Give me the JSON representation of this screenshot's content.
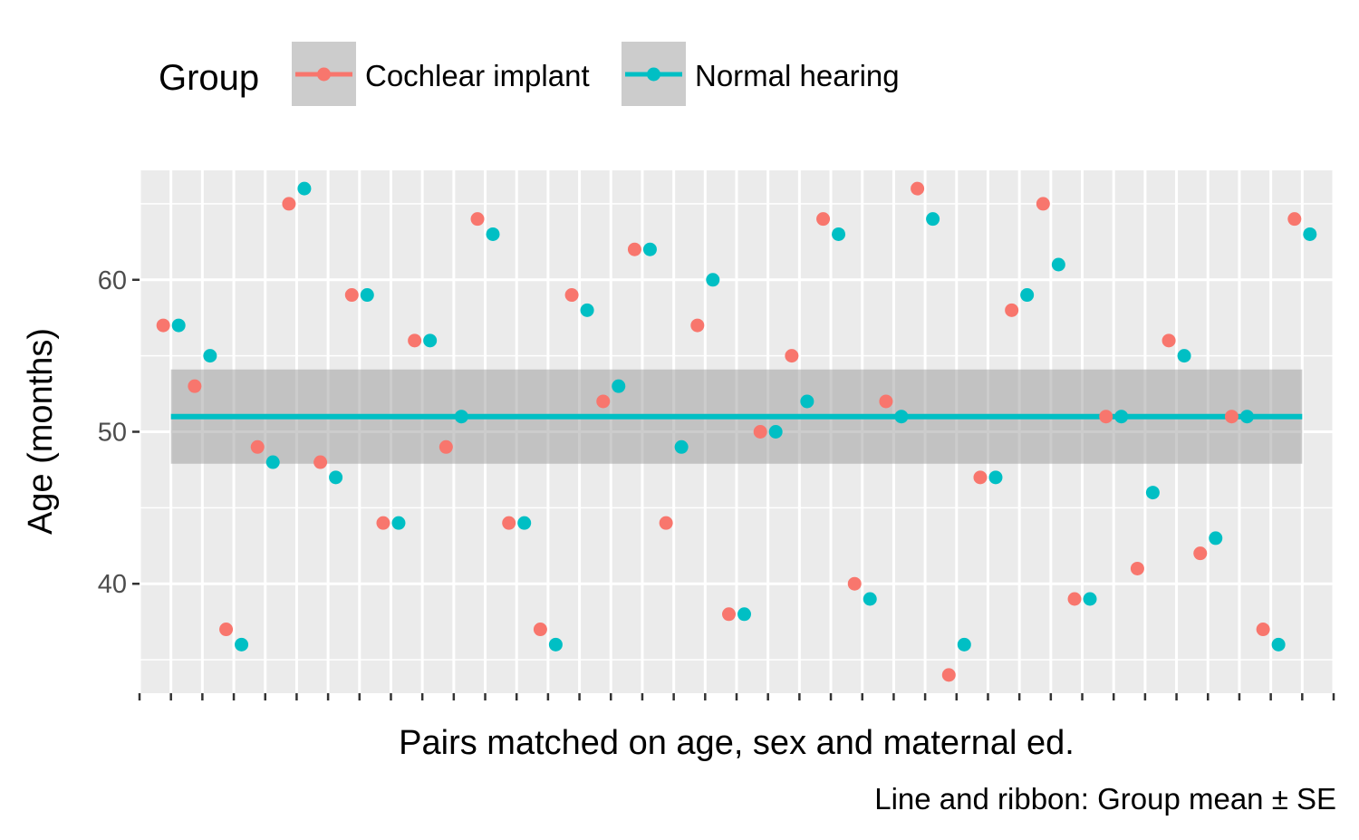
{
  "chart_data": {
    "type": "scatter",
    "xlabel": "Pairs matched on age, sex and maternal ed.",
    "ylabel": "Age (months)",
    "caption": "Line and ribbon: Group mean ± SE",
    "ylim": [
      32.8,
      67.2
    ],
    "yticks": [
      40,
      50,
      60
    ],
    "grid": true,
    "legend": {
      "title": "Group",
      "position": "top",
      "entries": [
        "Cochlear implant",
        "Normal hearing"
      ]
    },
    "pair_count": 37,
    "summary": {
      "mean": 51,
      "se_low": 47.9,
      "se_high": 54.1,
      "line_color": "#00BFC4",
      "ribbon_color": "#999999"
    },
    "series": [
      {
        "name": "Cochlear implant",
        "color": "#F8766D",
        "values": [
          57,
          53,
          37,
          49,
          65,
          48,
          59,
          44,
          56,
          49,
          64,
          44,
          37,
          59,
          52,
          62,
          44,
          57,
          38,
          50,
          55,
          64,
          40,
          52,
          66,
          34,
          47,
          58,
          65,
          39,
          51,
          41,
          56,
          42,
          51,
          37,
          64
        ]
      },
      {
        "name": "Normal hearing",
        "color": "#00BFC4",
        "values": [
          57,
          55,
          36,
          48,
          66,
          47,
          59,
          44,
          56,
          51,
          63,
          44,
          36,
          58,
          53,
          62,
          49,
          60,
          38,
          50,
          52,
          63,
          39,
          51,
          64,
          36,
          47,
          59,
          61,
          39,
          51,
          46,
          55,
          43,
          51,
          36,
          63
        ]
      }
    ]
  }
}
